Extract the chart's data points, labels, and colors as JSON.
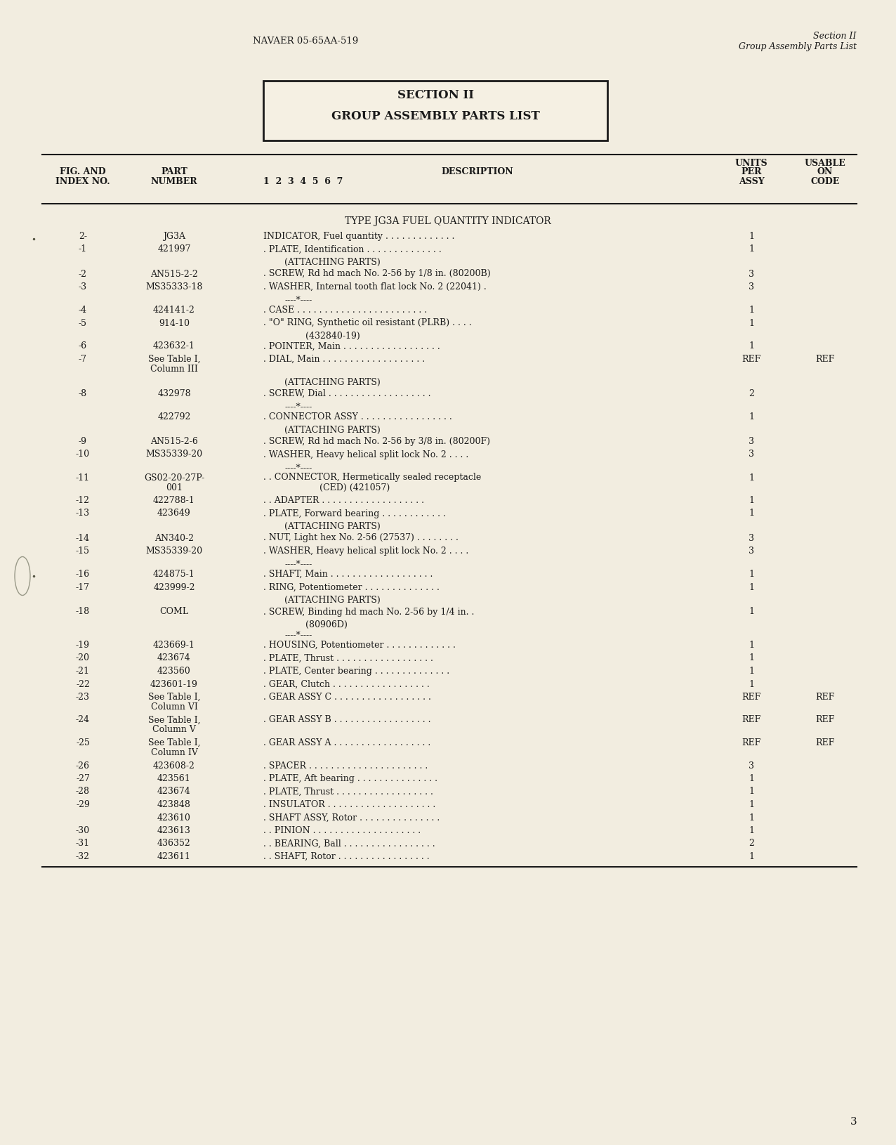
{
  "bg_color": "#f2ede0",
  "page_color": "#f5f0e3",
  "header_left": "NAVAER 05-65AA-519",
  "header_right_line1": "Section II",
  "header_right_line2": "Group Assembly Parts List",
  "section_box_line1": "SECTION II",
  "section_box_line2": "GROUP ASSEMBLY PARTS LIST",
  "type_label": "TYPE JG3A FUEL QUANTITY INDICATOR",
  "rows": [
    {
      "fig": "2-",
      "part": "JG3A",
      "desc": "INDICATOR, Fuel quantity . . . . . . . . . . . . .",
      "qty": "1",
      "code": "",
      "indent": 0
    },
    {
      "fig": "-1",
      "part": "421997",
      "desc": ". PLATE, Identification . . . . . . . . . . . . . .",
      "qty": "1",
      "code": "",
      "indent": 0
    },
    {
      "fig": "",
      "part": "",
      "desc": "(ATTACHING PARTS)",
      "qty": "",
      "code": "",
      "indent": 0
    },
    {
      "fig": "-2",
      "part": "AN515-2-2",
      "desc": ". SCREW, Rd hd mach No. 2-56 by 1/8 in. (80200B)",
      "qty": "3",
      "code": "",
      "indent": 0
    },
    {
      "fig": "-3",
      "part": "MS35333-18",
      "desc": ". WASHER, Internal tooth flat lock No. 2 (22041) .",
      "qty": "3",
      "code": "",
      "indent": 0
    },
    {
      "fig": "",
      "part": "",
      "desc": "----*----",
      "qty": "",
      "code": "",
      "indent": 0
    },
    {
      "fig": "-4",
      "part": "424141-2",
      "desc": ". CASE . . . . . . . . . . . . . . . . . . . . . . . .",
      "qty": "1",
      "code": "",
      "indent": 0
    },
    {
      "fig": "-5",
      "part": "914-10",
      "desc": ". \"O\" RING, Synthetic oil resistant (PLRB) . . . .",
      "qty": "1",
      "code": "",
      "indent": 0
    },
    {
      "fig": "",
      "part": "",
      "desc": "(432840-19)",
      "qty": "",
      "code": "",
      "indent": 1
    },
    {
      "fig": "-6",
      "part": "423632-1",
      "desc": ". POINTER, Main . . . . . . . . . . . . . . . . . .",
      "qty": "1",
      "code": "",
      "indent": 0
    },
    {
      "fig": "-7",
      "part": "See Table I,\nColumn III",
      "desc": ". DIAL, Main . . . . . . . . . . . . . . . . . . .",
      "qty": "REF",
      "code": "REF",
      "indent": 0
    },
    {
      "fig": "",
      "part": "",
      "desc": "(ATTACHING PARTS)",
      "qty": "",
      "code": "",
      "indent": 0
    },
    {
      "fig": "-8",
      "part": "432978",
      "desc": ". SCREW, Dial . . . . . . . . . . . . . . . . . . .",
      "qty": "2",
      "code": "",
      "indent": 0
    },
    {
      "fig": "",
      "part": "",
      "desc": "----*----",
      "qty": "",
      "code": "",
      "indent": 0
    },
    {
      "fig": "",
      "part": "422792",
      "desc": ". CONNECTOR ASSY . . . . . . . . . . . . . . . . .",
      "qty": "1",
      "code": "",
      "indent": 0
    },
    {
      "fig": "",
      "part": "",
      "desc": "(ATTACHING PARTS)",
      "qty": "",
      "code": "",
      "indent": 0
    },
    {
      "fig": "-9",
      "part": "AN515-2-6",
      "desc": ". SCREW, Rd hd mach No. 2-56 by 3/8 in. (80200F)",
      "qty": "3",
      "code": "",
      "indent": 0
    },
    {
      "fig": "-10",
      "part": "MS35339-20",
      "desc": ". WASHER, Heavy helical split lock No. 2 . . . .",
      "qty": "3",
      "code": "",
      "indent": 0
    },
    {
      "fig": "",
      "part": "",
      "desc": "----*----",
      "qty": "",
      "code": "",
      "indent": 0
    },
    {
      "fig": "-11",
      "part": "GS02-20-27P-\n001",
      "desc": ". . CONNECTOR, Hermetically sealed receptacle\n(CED) (421057)",
      "qty": "1",
      "code": "",
      "indent": 0
    },
    {
      "fig": "-12",
      "part": "422788-1",
      "desc": ". . ADAPTER . . . . . . . . . . . . . . . . . . .",
      "qty": "1",
      "code": "",
      "indent": 0
    },
    {
      "fig": "-13",
      "part": "423649",
      "desc": ". PLATE, Forward bearing . . . . . . . . . . . .",
      "qty": "1",
      "code": "",
      "indent": 0
    },
    {
      "fig": "",
      "part": "",
      "desc": "(ATTACHING PARTS)",
      "qty": "",
      "code": "",
      "indent": 0
    },
    {
      "fig": "-14",
      "part": "AN340-2",
      "desc": ". NUT, Light hex No. 2-56 (27537) . . . . . . . .",
      "qty": "3",
      "code": "",
      "indent": 0
    },
    {
      "fig": "-15",
      "part": "MS35339-20",
      "desc": ". WASHER, Heavy helical split lock No. 2 . . . .",
      "qty": "3",
      "code": "",
      "indent": 0
    },
    {
      "fig": "",
      "part": "",
      "desc": "----*----",
      "qty": "",
      "code": "",
      "indent": 0
    },
    {
      "fig": "-16",
      "part": "424875-1",
      "desc": ". SHAFT, Main . . . . . . . . . . . . . . . . . . .",
      "qty": "1",
      "code": "",
      "indent": 0
    },
    {
      "fig": "-17",
      "part": "423999-2",
      "desc": ". RING, Potentiometer . . . . . . . . . . . . . .",
      "qty": "1",
      "code": "",
      "indent": 0
    },
    {
      "fig": "",
      "part": "",
      "desc": "(ATTACHING PARTS)",
      "qty": "",
      "code": "",
      "indent": 0
    },
    {
      "fig": "-18",
      "part": "COML",
      "desc": ". SCREW, Binding hd mach No. 2-56 by 1/4 in. .",
      "qty": "1",
      "code": "",
      "indent": 0
    },
    {
      "fig": "",
      "part": "",
      "desc": "(80906D)",
      "qty": "",
      "code": "",
      "indent": 1
    },
    {
      "fig": "",
      "part": "",
      "desc": "----*----",
      "qty": "",
      "code": "",
      "indent": 0
    },
    {
      "fig": "-19",
      "part": "423669-1",
      "desc": ". HOUSING, Potentiometer . . . . . . . . . . . . .",
      "qty": "1",
      "code": "",
      "indent": 0
    },
    {
      "fig": "-20",
      "part": "423674",
      "desc": ". PLATE, Thrust . . . . . . . . . . . . . . . . . .",
      "qty": "1",
      "code": "",
      "indent": 0
    },
    {
      "fig": "-21",
      "part": "423560",
      "desc": ". PLATE, Center bearing . . . . . . . . . . . . . .",
      "qty": "1",
      "code": "",
      "indent": 0
    },
    {
      "fig": "-22",
      "part": "423601-19",
      "desc": ". GEAR, Clutch . . . . . . . . . . . . . . . . . .",
      "qty": "1",
      "code": "",
      "indent": 0
    },
    {
      "fig": "-23",
      "part": "See Table I,\nColumn VI",
      "desc": ". GEAR ASSY C . . . . . . . . . . . . . . . . . .",
      "qty": "REF",
      "code": "REF",
      "indent": 0
    },
    {
      "fig": "-24",
      "part": "See Table I,\nColumn V",
      "desc": ". GEAR ASSY B . . . . . . . . . . . . . . . . . .",
      "qty": "REF",
      "code": "REF",
      "indent": 0
    },
    {
      "fig": "-25",
      "part": "See Table I,\nColumn IV",
      "desc": ". GEAR ASSY A . . . . . . . . . . . . . . . . . .",
      "qty": "REF",
      "code": "REF",
      "indent": 0
    },
    {
      "fig": "-26",
      "part": "423608-2",
      "desc": ". SPACER . . . . . . . . . . . . . . . . . . . . . .",
      "qty": "3",
      "code": "",
      "indent": 0
    },
    {
      "fig": "-27",
      "part": "423561",
      "desc": ". PLATE, Aft bearing . . . . . . . . . . . . . . .",
      "qty": "1",
      "code": "",
      "indent": 0
    },
    {
      "fig": "-28",
      "part": "423674",
      "desc": ". PLATE, Thrust . . . . . . . . . . . . . . . . . .",
      "qty": "1",
      "code": "",
      "indent": 0
    },
    {
      "fig": "-29",
      "part": "423848",
      "desc": ". INSULATOR . . . . . . . . . . . . . . . . . . . .",
      "qty": "1",
      "code": "",
      "indent": 0
    },
    {
      "fig": "",
      "part": "423610",
      "desc": ". SHAFT ASSY, Rotor . . . . . . . . . . . . . . .",
      "qty": "1",
      "code": "",
      "indent": 0
    },
    {
      "fig": "-30",
      "part": "423613",
      "desc": ". . PINION . . . . . . . . . . . . . . . . . . . .",
      "qty": "1",
      "code": "",
      "indent": 0
    },
    {
      "fig": "-31",
      "part": "436352",
      "desc": ". . BEARING, Ball . . . . . . . . . . . . . . . . .",
      "qty": "2",
      "code": "",
      "indent": 0
    },
    {
      "fig": "-32",
      "part": "423611",
      "desc": ". . SHAFT, Rotor . . . . . . . . . . . . . . . . .",
      "qty": "1",
      "code": "",
      "indent": 0
    }
  ],
  "page_number": "3",
  "font_color": "#1a1a1a",
  "line_color": "#1a1a1a"
}
